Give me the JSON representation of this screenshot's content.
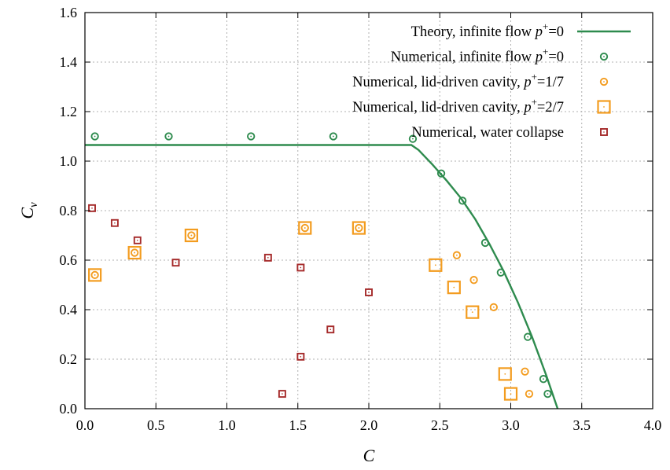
{
  "chart_data": {
    "type": "scatter",
    "xlabel": "C",
    "ylabel": "Cv",
    "xlim": [
      0.0,
      4.0
    ],
    "ylim": [
      0.0,
      1.6
    ],
    "xticks": [
      "0.0",
      "0.5",
      "1.0",
      "1.5",
      "2.0",
      "2.5",
      "3.0",
      "3.5",
      "4.0"
    ],
    "yticks": [
      "0.0",
      "0.2",
      "0.4",
      "0.6",
      "0.8",
      "1.0",
      "1.2",
      "1.4",
      "1.6"
    ],
    "grid": true,
    "legend_position": "top-right",
    "series": [
      {
        "name": "Theory, infinite flow p+=0",
        "marker": "line",
        "color": "#2e8b4e",
        "points": [
          [
            0.0,
            1.065
          ],
          [
            2.3,
            1.065
          ],
          [
            2.35,
            1.045
          ],
          [
            2.45,
            0.985
          ],
          [
            2.55,
            0.92
          ],
          [
            2.65,
            0.85
          ],
          [
            2.75,
            0.765
          ],
          [
            2.85,
            0.665
          ],
          [
            2.95,
            0.555
          ],
          [
            3.05,
            0.43
          ],
          [
            3.15,
            0.29
          ],
          [
            3.25,
            0.135
          ],
          [
            3.33,
            0.0
          ]
        ]
      },
      {
        "name": "Numerical, infinite flow p+=0",
        "marker": "circle",
        "color": "#2e8b4e",
        "points": [
          [
            0.07,
            1.1
          ],
          [
            0.59,
            1.1
          ],
          [
            1.17,
            1.1
          ],
          [
            1.75,
            1.1
          ],
          [
            2.31,
            1.09
          ],
          [
            2.51,
            0.95
          ],
          [
            2.66,
            0.84
          ],
          [
            2.82,
            0.67
          ],
          [
            2.93,
            0.55
          ],
          [
            3.12,
            0.29
          ],
          [
            3.23,
            0.12
          ],
          [
            3.26,
            0.06
          ]
        ]
      },
      {
        "name": "Numerical, lid-driven cavity, p+=1/7",
        "marker": "circle",
        "color": "#f39c1f",
        "points": [
          [
            0.07,
            0.54
          ],
          [
            0.35,
            0.63
          ],
          [
            0.75,
            0.7
          ],
          [
            1.55,
            0.73
          ],
          [
            1.93,
            0.73
          ],
          [
            2.62,
            0.62
          ],
          [
            2.74,
            0.52
          ],
          [
            2.88,
            0.41
          ],
          [
            3.1,
            0.15
          ],
          [
            3.13,
            0.06
          ]
        ]
      },
      {
        "name": "Numerical, lid-driven cavity, p+=2/7",
        "marker": "square-large",
        "color": "#f39c1f",
        "points": [
          [
            0.07,
            0.54
          ],
          [
            0.35,
            0.63
          ],
          [
            0.75,
            0.7
          ],
          [
            1.55,
            0.73
          ],
          [
            1.93,
            0.73
          ],
          [
            2.47,
            0.58
          ],
          [
            2.6,
            0.49
          ],
          [
            2.73,
            0.39
          ],
          [
            2.96,
            0.14
          ],
          [
            3.0,
            0.06
          ]
        ]
      },
      {
        "name": "Numerical, water collapse",
        "marker": "square-small",
        "color": "#a52a2a",
        "points": [
          [
            0.05,
            0.81
          ],
          [
            0.21,
            0.75
          ],
          [
            0.37,
            0.68
          ],
          [
            0.64,
            0.59
          ],
          [
            1.29,
            0.61
          ],
          [
            1.52,
            0.57
          ],
          [
            2.0,
            0.47
          ],
          [
            1.73,
            0.32
          ],
          [
            1.52,
            0.21
          ],
          [
            1.39,
            0.06
          ]
        ]
      }
    ],
    "legend": [
      {
        "main": "Theory, infinite flow ",
        "var": "p",
        "sup": "+",
        "rest": "=0"
      },
      {
        "main": "Numerical, infinite flow ",
        "var": "p",
        "sup": "+",
        "rest": "=0"
      },
      {
        "main": "Numerical, lid-driven cavity, ",
        "var": "p",
        "sup": "+",
        "rest": "=1/7"
      },
      {
        "main": "Numerical, lid-driven cavity, ",
        "var": "p",
        "sup": "+",
        "rest": "=2/7"
      },
      {
        "main": "Numerical, water collapse",
        "var": "",
        "sup": "",
        "rest": ""
      }
    ]
  }
}
